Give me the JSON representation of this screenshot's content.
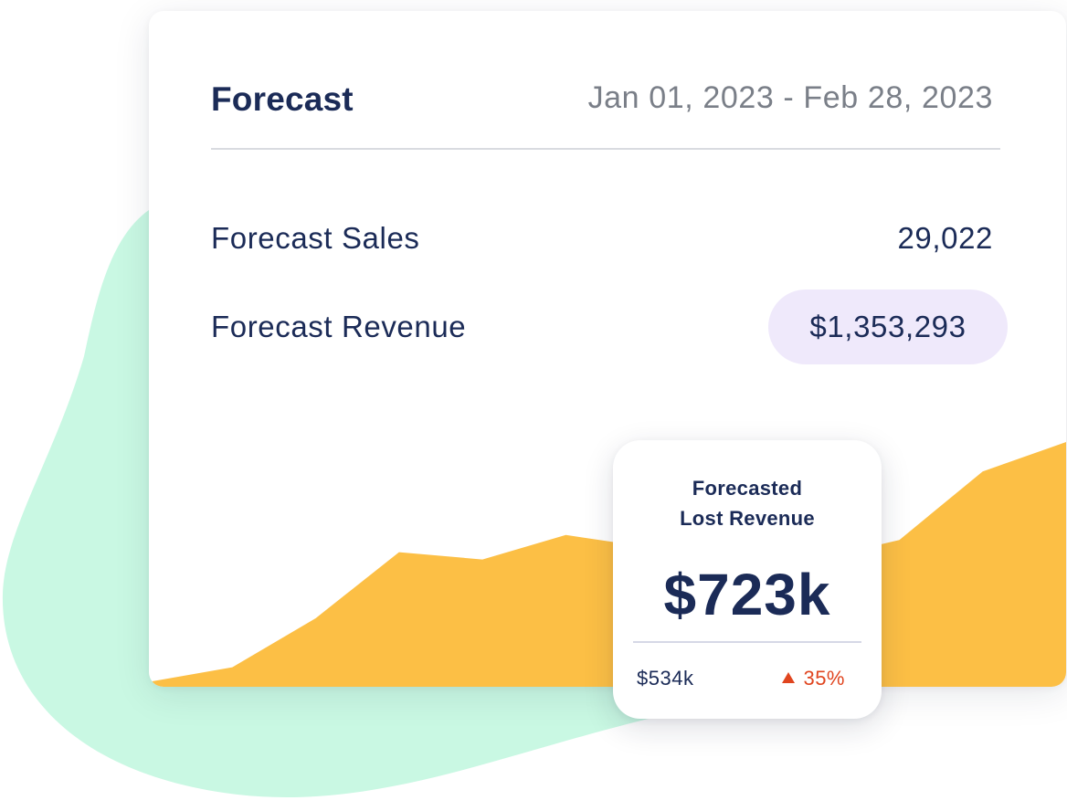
{
  "card": {
    "title": "Forecast",
    "date_range": "Jan 01, 2023 - Feb 28, 2023",
    "sales_label": "Forecast Sales",
    "sales_value": "29,022",
    "revenue_label": "Forecast Revenue",
    "revenue_value": "$1,353,293"
  },
  "popup": {
    "title_line1": "Forecasted",
    "title_line2": "Lost Revenue",
    "value": "$723k",
    "previous_value": "$534k",
    "change_icon": "triangle-up-icon",
    "change_value": "35%"
  },
  "colors": {
    "navy": "#1b2b57",
    "muted_gray": "#7a7f88",
    "chart_fill": "#fcbf45",
    "revenue_pill": "#efe9fb",
    "increase": "#e0451f",
    "background_blob": "#c9f8e3"
  },
  "chart_data": {
    "type": "area",
    "values": [
      0.02,
      0.08,
      0.28,
      0.55,
      0.52,
      0.62,
      0.57,
      0.48,
      0.52,
      0.6,
      0.88,
      1.0
    ]
  }
}
